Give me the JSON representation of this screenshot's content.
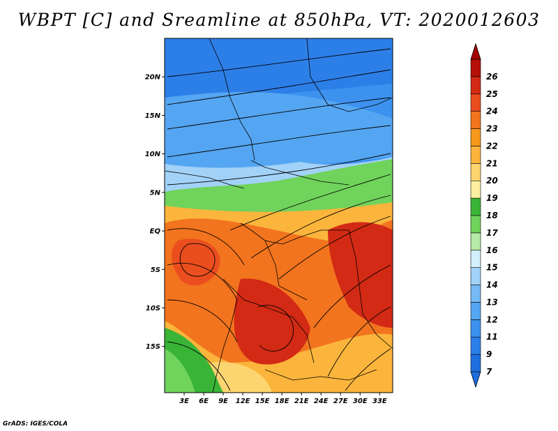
{
  "title": "WBPT [C] and Sreamline at 850hPa, VT: 2020012603",
  "credit": "GrADS: IGES/COLA",
  "map": {
    "lat_range": [
      -21,
      25
    ],
    "lon_range": [
      0,
      35
    ],
    "lat_ticks": [
      {
        "value": 20,
        "label": "20N"
      },
      {
        "value": 15,
        "label": "15N"
      },
      {
        "value": 10,
        "label": "10N"
      },
      {
        "value": 5,
        "label": "5N"
      },
      {
        "value": 0,
        "label": "EQ"
      },
      {
        "value": -5,
        "label": "5S"
      },
      {
        "value": -10,
        "label": "10S"
      },
      {
        "value": -15,
        "label": "15S"
      }
    ],
    "lon_ticks": [
      {
        "value": 3,
        "label": "3E"
      },
      {
        "value": 6,
        "label": "6E"
      },
      {
        "value": 9,
        "label": "9E"
      },
      {
        "value": 12,
        "label": "12E"
      },
      {
        "value": 15,
        "label": "15E"
      },
      {
        "value": 18,
        "label": "18E"
      },
      {
        "value": 21,
        "label": "21E"
      },
      {
        "value": 24,
        "label": "24E"
      },
      {
        "value": 27,
        "label": "27E"
      },
      {
        "value": 30,
        "label": "30E"
      },
      {
        "value": 33,
        "label": "33E"
      }
    ]
  },
  "colorbar": {
    "levels": [
      {
        "label": "7",
        "color": "#1e6ee0"
      },
      {
        "label": "9",
        "color": "#2d7fe8"
      },
      {
        "label": "11",
        "color": "#3c92ee"
      },
      {
        "label": "12",
        "color": "#55a6f2"
      },
      {
        "label": "13",
        "color": "#75baf5"
      },
      {
        "label": "14",
        "color": "#a2d2f8"
      },
      {
        "label": "15",
        "color": "#d2f0fb"
      },
      {
        "label": "16",
        "color": "#b6eaa6"
      },
      {
        "label": "17",
        "color": "#70d35c"
      },
      {
        "label": "18",
        "color": "#3ab436"
      },
      {
        "label": "19",
        "color": "#fff0a0"
      },
      {
        "label": "20",
        "color": "#fdd570"
      },
      {
        "label": "21",
        "color": "#fbb53c"
      },
      {
        "label": "22",
        "color": "#f7981c"
      },
      {
        "label": "23",
        "color": "#f2741e"
      },
      {
        "label": "24",
        "color": "#ea4e1e"
      },
      {
        "label": "25",
        "color": "#d22a14"
      },
      {
        "label": "26",
        "color": "#b41008"
      }
    ],
    "under_color": "#1e6ee0",
    "over_color": "#a30505"
  }
}
